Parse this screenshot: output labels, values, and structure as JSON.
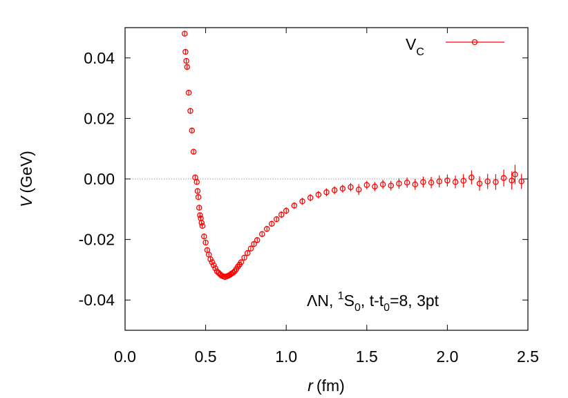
{
  "chart_data": {
    "type": "scatter",
    "xlabel": {
      "var": "r",
      "unit": "(fm)"
    },
    "ylabel": {
      "var": "V",
      "unit": "(GeV)"
    },
    "xlim": [
      0.0,
      2.5
    ],
    "ylim": [
      -0.05,
      0.05
    ],
    "x_ticks": [
      "0.0",
      "0.5",
      "1.0",
      "1.5",
      "2.0",
      "2.5"
    ],
    "y_ticks": [
      "0.04",
      "0.02",
      "0.00",
      "-0.02",
      "-0.04"
    ],
    "x_tick_values": [
      0.0,
      0.5,
      1.0,
      1.5,
      2.0,
      2.5
    ],
    "y_tick_values": [
      0.04,
      0.02,
      0.0,
      -0.02,
      -0.04
    ],
    "zero_line": true,
    "legend": {
      "placement": "top-right",
      "label_main": "V",
      "label_sub": "C"
    },
    "annotation": {
      "lambda": "Λ",
      "p1": "N, ",
      "sup": "1",
      "p2": "S",
      "sub0": "0",
      "p3": ", t-t",
      "sub1": "0",
      "p4": "=8, 3pt"
    },
    "color": "#ff0000",
    "series": [
      {
        "name": "VC",
        "x": [
          0.37,
          0.375,
          0.38,
          0.385,
          0.395,
          0.405,
          0.415,
          0.425,
          0.435,
          0.445,
          0.45,
          0.455,
          0.46,
          0.465,
          0.47,
          0.475,
          0.48,
          0.49,
          0.5,
          0.51,
          0.52,
          0.53,
          0.54,
          0.55,
          0.56,
          0.57,
          0.58,
          0.59,
          0.6,
          0.61,
          0.62,
          0.63,
          0.64,
          0.65,
          0.66,
          0.67,
          0.68,
          0.69,
          0.7,
          0.71,
          0.72,
          0.74,
          0.76,
          0.78,
          0.8,
          0.82,
          0.85,
          0.88,
          0.91,
          0.94,
          0.97,
          1.0,
          1.05,
          1.1,
          1.15,
          1.2,
          1.25,
          1.3,
          1.35,
          1.4,
          1.45,
          1.5,
          1.55,
          1.6,
          1.65,
          1.7,
          1.75,
          1.8,
          1.85,
          1.9,
          1.95,
          2.0,
          2.05,
          2.1,
          2.15,
          2.2,
          2.25,
          2.3,
          2.35,
          2.4,
          2.42,
          2.46
        ],
        "y": [
          0.048,
          0.042,
          0.039,
          0.037,
          0.0285,
          0.0225,
          0.016,
          0.009,
          0.0005,
          -0.001,
          -0.004,
          -0.006,
          -0.0095,
          -0.012,
          -0.013,
          -0.0145,
          -0.0155,
          -0.019,
          -0.021,
          -0.0235,
          -0.025,
          -0.0265,
          -0.0275,
          -0.0285,
          -0.0295,
          -0.0305,
          -0.031,
          -0.0315,
          -0.032,
          -0.0322,
          -0.0324,
          -0.0322,
          -0.032,
          -0.0317,
          -0.0313,
          -0.031,
          -0.0305,
          -0.0298,
          -0.029,
          -0.0283,
          -0.0275,
          -0.026,
          -0.0245,
          -0.023,
          -0.0215,
          -0.0202,
          -0.0182,
          -0.0165,
          -0.0148,
          -0.0133,
          -0.0118,
          -0.0105,
          -0.0088,
          -0.0074,
          -0.0062,
          -0.0052,
          -0.0044,
          -0.0037,
          -0.0032,
          -0.0027,
          -0.0035,
          -0.002,
          -0.0025,
          -0.0018,
          -0.0022,
          -0.0015,
          -0.0012,
          -0.0018,
          -0.001,
          -0.0012,
          -0.0008,
          -0.0005,
          -0.001,
          -0.0006,
          0.0005,
          -0.0015,
          -0.0008,
          -0.001,
          0.0003,
          -0.0005,
          0.0015,
          -0.0008
        ],
        "err": [
          0.0008,
          0.0009,
          0.0009,
          0.001,
          0.0008,
          0.0008,
          0.0008,
          0.0008,
          0.0008,
          0.0009,
          0.0009,
          0.0009,
          0.0009,
          0.0009,
          0.0009,
          0.0009,
          0.0009,
          0.0009,
          0.0009,
          0.0009,
          0.0009,
          0.0008,
          0.0008,
          0.0008,
          0.0008,
          0.0008,
          0.0008,
          0.0008,
          0.0008,
          0.0008,
          0.0008,
          0.0008,
          0.0008,
          0.0008,
          0.0008,
          0.0008,
          0.0008,
          0.0008,
          0.0008,
          0.0008,
          0.0009,
          0.0009,
          0.0009,
          0.0009,
          0.001,
          0.001,
          0.001,
          0.001,
          0.001,
          0.001,
          0.0011,
          0.0011,
          0.0011,
          0.0012,
          0.0012,
          0.0012,
          0.0013,
          0.0013,
          0.0013,
          0.0014,
          0.0018,
          0.0014,
          0.0015,
          0.0015,
          0.0016,
          0.0017,
          0.0017,
          0.0018,
          0.0018,
          0.0019,
          0.002,
          0.002,
          0.0021,
          0.0022,
          0.0023,
          0.0024,
          0.0025,
          0.0026,
          0.0028,
          0.003,
          0.0032,
          0.0025
        ]
      }
    ]
  }
}
